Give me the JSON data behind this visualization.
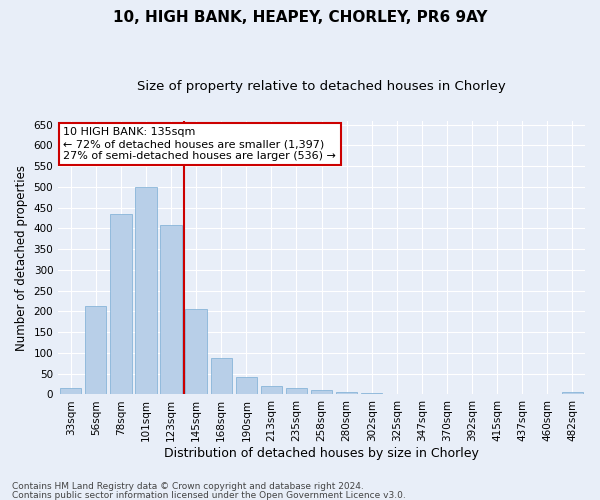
{
  "title1": "10, HIGH BANK, HEAPEY, CHORLEY, PR6 9AY",
  "title2": "Size of property relative to detached houses in Chorley",
  "xlabel": "Distribution of detached houses by size in Chorley",
  "ylabel": "Number of detached properties",
  "categories": [
    "33sqm",
    "56sqm",
    "78sqm",
    "101sqm",
    "123sqm",
    "145sqm",
    "168sqm",
    "190sqm",
    "213sqm",
    "235sqm",
    "258sqm",
    "280sqm",
    "302sqm",
    "325sqm",
    "347sqm",
    "370sqm",
    "392sqm",
    "415sqm",
    "437sqm",
    "460sqm",
    "482sqm"
  ],
  "values": [
    15,
    212,
    435,
    500,
    408,
    205,
    87,
    41,
    20,
    16,
    10,
    5,
    3,
    2,
    1,
    1,
    0,
    0,
    0,
    0,
    5
  ],
  "bar_color": "#b8cfe8",
  "bar_edge_color": "#7aadd4",
  "vline_color": "#cc0000",
  "annotation_text": "10 HIGH BANK: 135sqm\n← 72% of detached houses are smaller (1,397)\n27% of semi-detached houses are larger (536) →",
  "annotation_box_color": "#ffffff",
  "annotation_box_edge": "#cc0000",
  "ylim": [
    0,
    660
  ],
  "yticks": [
    0,
    50,
    100,
    150,
    200,
    250,
    300,
    350,
    400,
    450,
    500,
    550,
    600,
    650
  ],
  "background_color": "#e8eef8",
  "grid_color": "#ffffff",
  "footer1": "Contains HM Land Registry data © Crown copyright and database right 2024.",
  "footer2": "Contains public sector information licensed under the Open Government Licence v3.0.",
  "title1_fontsize": 11,
  "title2_fontsize": 9.5,
  "tick_fontsize": 7.5,
  "xlabel_fontsize": 9,
  "ylabel_fontsize": 8.5,
  "footer_fontsize": 6.5,
  "annot_fontsize": 8
}
